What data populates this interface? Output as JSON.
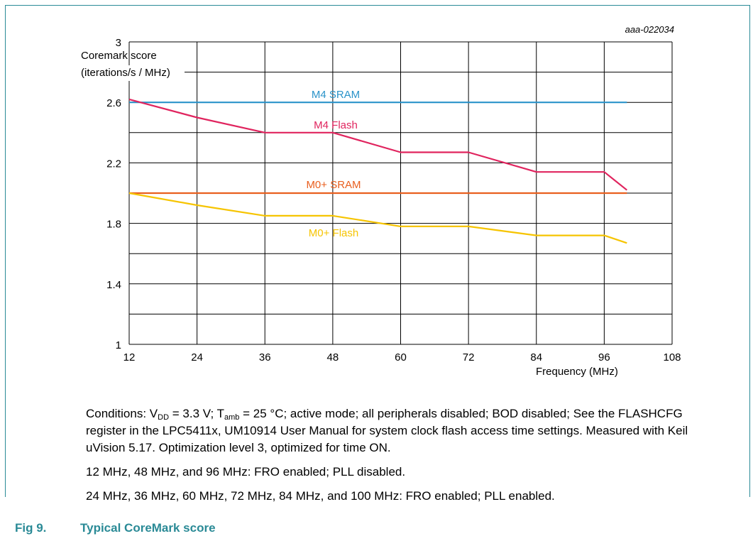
{
  "chart_data": {
    "type": "line",
    "id_label": "aaa-022034",
    "ylabel_line1": "Coremark score",
    "ylabel_line2": "(iterations/s / MHz)",
    "xlabel": "Frequency (MHz)",
    "xlim": [
      12,
      108
    ],
    "ylim": [
      1,
      3
    ],
    "x_ticks": [
      12,
      24,
      36,
      48,
      60,
      72,
      84,
      96,
      108
    ],
    "y_ticks": [
      "1",
      "1.4",
      "1.8",
      "2.2",
      "2.6",
      "3"
    ],
    "grid": true,
    "series": [
      {
        "name": "M4 SRAM",
        "color": "#2a93c9",
        "x": [
          12,
          100
        ],
        "y": [
          2.6,
          2.6
        ]
      },
      {
        "name": "M4 Flash",
        "color": "#e0245e",
        "x": [
          12,
          24,
          36,
          48,
          60,
          72,
          84,
          96,
          100
        ],
        "y": [
          2.62,
          2.5,
          2.4,
          2.4,
          2.27,
          2.27,
          2.14,
          2.14,
          2.02
        ]
      },
      {
        "name": "M0+ SRAM",
        "color": "#e95f1f",
        "x": [
          12,
          100
        ],
        "y": [
          2.0,
          2.0
        ]
      },
      {
        "name": "M0+ Flash",
        "color": "#f6c400",
        "x": [
          12,
          24,
          36,
          48,
          60,
          72,
          84,
          96,
          100
        ],
        "y": [
          2.0,
          1.92,
          1.85,
          1.85,
          1.78,
          1.78,
          1.72,
          1.72,
          1.67
        ]
      }
    ]
  },
  "notes": {
    "cond_prefix": "Conditions: V",
    "cond_vdd_sub": "DD",
    "cond_mid": " = 3.3 V; T",
    "cond_tamb_sub": "amb",
    "cond_rest": " = 25 °C; active mode; all peripherals disabled; BOD disabled; See the FLASHCFG register in the LPC5411x, UM10914 User Manual for system clock flash access time settings. Measured with Keil uVision 5.17. Optimization level 3, optimized for time ON.",
    "line2": "12 MHz, 48 MHz, and 96 MHz: FRO enabled; PLL disabled.",
    "line3": "24 MHz, 36 MHz, 60 MHz, 72 MHz, 84 MHz, and 100 MHz: FRO enabled; PLL enabled."
  },
  "caption": {
    "number": "Fig 9.",
    "title": "Typical CoreMark score"
  }
}
